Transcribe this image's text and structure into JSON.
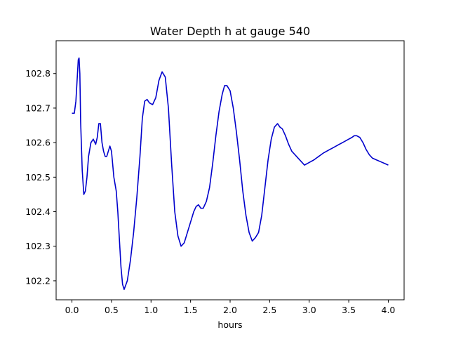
{
  "chart_data": {
    "type": "line",
    "title": "Water Depth h at gauge 540",
    "xlabel": "hours",
    "ylabel": "",
    "xlim": [
      -0.2,
      4.2
    ],
    "ylim": [
      102.145,
      102.895
    ],
    "xticks": [
      0.0,
      0.5,
      1.0,
      1.5,
      2.0,
      2.5,
      3.0,
      3.5,
      4.0
    ],
    "xtick_labels": [
      "0.0",
      "0.5",
      "1.0",
      "1.5",
      "2.0",
      "2.5",
      "3.0",
      "3.5",
      "4.0"
    ],
    "yticks": [
      102.2,
      102.3,
      102.4,
      102.5,
      102.6,
      102.7,
      102.8
    ],
    "ytick_labels": [
      "102.2",
      "102.3",
      "102.4",
      "102.5",
      "102.6",
      "102.7",
      "102.8"
    ],
    "grid": false,
    "series": [
      {
        "color": "#0000cc",
        "x": [
          0.0,
          0.03,
          0.05,
          0.07,
          0.08,
          0.09,
          0.1,
          0.11,
          0.13,
          0.15,
          0.17,
          0.19,
          0.21,
          0.24,
          0.27,
          0.3,
          0.32,
          0.34,
          0.36,
          0.38,
          0.4,
          0.42,
          0.44,
          0.46,
          0.48,
          0.5,
          0.53,
          0.56,
          0.58,
          0.6,
          0.62,
          0.64,
          0.66,
          0.7,
          0.74,
          0.78,
          0.82,
          0.86,
          0.89,
          0.92,
          0.95,
          0.98,
          1.02,
          1.06,
          1.1,
          1.14,
          1.18,
          1.22,
          1.26,
          1.3,
          1.34,
          1.38,
          1.42,
          1.46,
          1.5,
          1.54,
          1.57,
          1.6,
          1.63,
          1.66,
          1.7,
          1.74,
          1.78,
          1.82,
          1.86,
          1.9,
          1.93,
          1.96,
          2.0,
          2.04,
          2.08,
          2.12,
          2.16,
          2.2,
          2.24,
          2.28,
          2.32,
          2.36,
          2.4,
          2.44,
          2.48,
          2.52,
          2.56,
          2.6,
          2.63,
          2.66,
          2.7,
          2.74,
          2.78,
          2.82,
          2.86,
          2.9,
          2.94,
          2.98,
          3.02,
          3.06,
          3.09,
          3.12,
          3.15,
          3.18,
          3.22,
          3.26,
          3.3,
          3.34,
          3.38,
          3.42,
          3.46,
          3.5,
          3.54,
          3.57,
          3.6,
          3.64,
          3.68,
          3.72,
          3.76,
          3.8,
          3.85,
          3.9,
          3.95,
          4.0
        ],
        "y": [
          102.685,
          102.685,
          102.72,
          102.8,
          102.84,
          102.845,
          102.8,
          102.66,
          102.52,
          102.45,
          102.46,
          102.5,
          102.56,
          102.6,
          102.61,
          102.595,
          102.615,
          102.655,
          102.655,
          102.6,
          102.575,
          102.56,
          102.56,
          102.575,
          102.59,
          102.575,
          102.5,
          102.46,
          102.4,
          102.32,
          102.24,
          102.19,
          102.175,
          102.2,
          102.26,
          102.34,
          102.44,
          102.56,
          102.67,
          102.72,
          102.725,
          102.715,
          102.71,
          102.73,
          102.78,
          102.805,
          102.79,
          102.7,
          102.54,
          102.4,
          102.33,
          102.3,
          102.31,
          102.34,
          102.37,
          102.4,
          102.415,
          102.42,
          102.41,
          102.41,
          102.43,
          102.47,
          102.54,
          102.62,
          102.69,
          102.74,
          102.765,
          102.765,
          102.75,
          102.7,
          102.63,
          102.55,
          102.46,
          102.39,
          102.34,
          102.315,
          102.325,
          102.34,
          102.39,
          102.47,
          102.55,
          102.61,
          102.645,
          102.655,
          102.645,
          102.64,
          102.62,
          102.595,
          102.575,
          102.565,
          102.555,
          102.545,
          102.535,
          102.54,
          102.545,
          102.55,
          102.555,
          102.56,
          102.565,
          102.57,
          102.575,
          102.58,
          102.585,
          102.59,
          102.595,
          102.6,
          102.605,
          102.61,
          102.615,
          102.62,
          102.62,
          102.615,
          102.6,
          102.58,
          102.565,
          102.555,
          102.55,
          102.545,
          102.54,
          102.535
        ]
      }
    ]
  }
}
